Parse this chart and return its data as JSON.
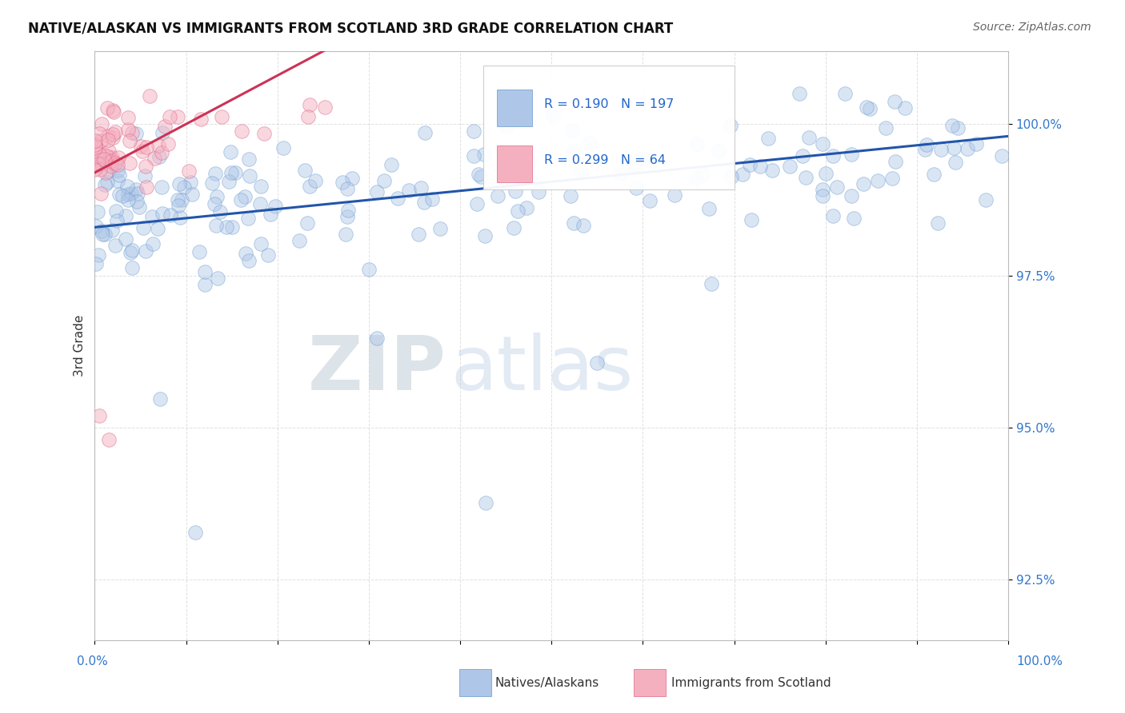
{
  "title": "NATIVE/ALASKAN VS IMMIGRANTS FROM SCOTLAND 3RD GRADE CORRELATION CHART",
  "source": "Source: ZipAtlas.com",
  "ylabel": "3rd Grade",
  "y_ticks": [
    92.5,
    95.0,
    97.5,
    100.0
  ],
  "y_tick_labels": [
    "92.5%",
    "95.0%",
    "97.5%",
    "100.0%"
  ],
  "x_range": [
    0.0,
    100.0
  ],
  "y_range": [
    91.5,
    101.0
  ],
  "blue_R": 0.19,
  "blue_N": 197,
  "pink_R": 0.299,
  "pink_N": 64,
  "blue_color": "#aec6e8",
  "blue_edge": "#6699cc",
  "blue_line": "#2255aa",
  "pink_color": "#f5b0c0",
  "pink_edge": "#dd6688",
  "pink_line": "#cc3355",
  "legend_label_blue": "Natives/Alaskans",
  "legend_label_pink": "Immigrants from Scotland",
  "background_color": "#ffffff"
}
